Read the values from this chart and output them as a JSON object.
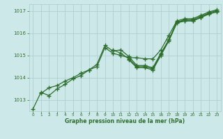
{
  "xlabel": "Graphe pression niveau de la mer (hPa)",
  "xlim": [
    -0.5,
    23.5
  ],
  "ylim": [
    1012.5,
    1017.3
  ],
  "yticks": [
    1013,
    1014,
    1015,
    1016,
    1017
  ],
  "xticks": [
    0,
    1,
    2,
    3,
    4,
    5,
    6,
    7,
    8,
    9,
    10,
    11,
    12,
    13,
    14,
    15,
    16,
    17,
    18,
    19,
    20,
    21,
    22,
    23
  ],
  "bg_color": "#cce8e8",
  "grid_color": "#aacccc",
  "line_color": "#2d6e2d",
  "line_width": 0.9,
  "marker": "+",
  "marker_size": 4,
  "marker_edge_width": 1.0,
  "series": [
    [
      1012.6,
      1013.35,
      1013.2,
      1013.5,
      1013.7,
      1013.95,
      1014.1,
      1014.35,
      1014.6,
      1015.45,
      1015.2,
      1015.25,
      1014.95,
      1014.55,
      1014.55,
      1014.45,
      1015.1,
      1015.7,
      1016.5,
      1016.6,
      1016.6,
      1016.75,
      1016.9,
      1017.0
    ],
    [
      null,
      1013.3,
      1013.55,
      1013.65,
      1013.85,
      1014.0,
      1014.2,
      1014.35,
      1014.5,
      1015.35,
      1015.1,
      1015.0,
      1014.9,
      1014.9,
      1014.85,
      1014.85,
      1015.25,
      1015.9,
      1016.55,
      1016.65,
      1016.65,
      1016.8,
      1016.95,
      1017.05
    ],
    [
      null,
      null,
      null,
      null,
      null,
      null,
      null,
      null,
      null,
      null,
      1015.25,
      1015.1,
      1014.85,
      1014.5,
      1014.5,
      1014.4,
      1015.05,
      1015.7,
      1016.5,
      1016.55,
      1016.55,
      1016.7,
      1016.9,
      1017.0
    ],
    [
      null,
      null,
      null,
      null,
      null,
      null,
      null,
      null,
      null,
      null,
      null,
      null,
      1014.8,
      1014.45,
      1014.45,
      1014.35,
      1015.0,
      1015.65,
      1016.45,
      1016.55,
      1016.55,
      1016.7,
      1016.85,
      1016.95
    ]
  ]
}
